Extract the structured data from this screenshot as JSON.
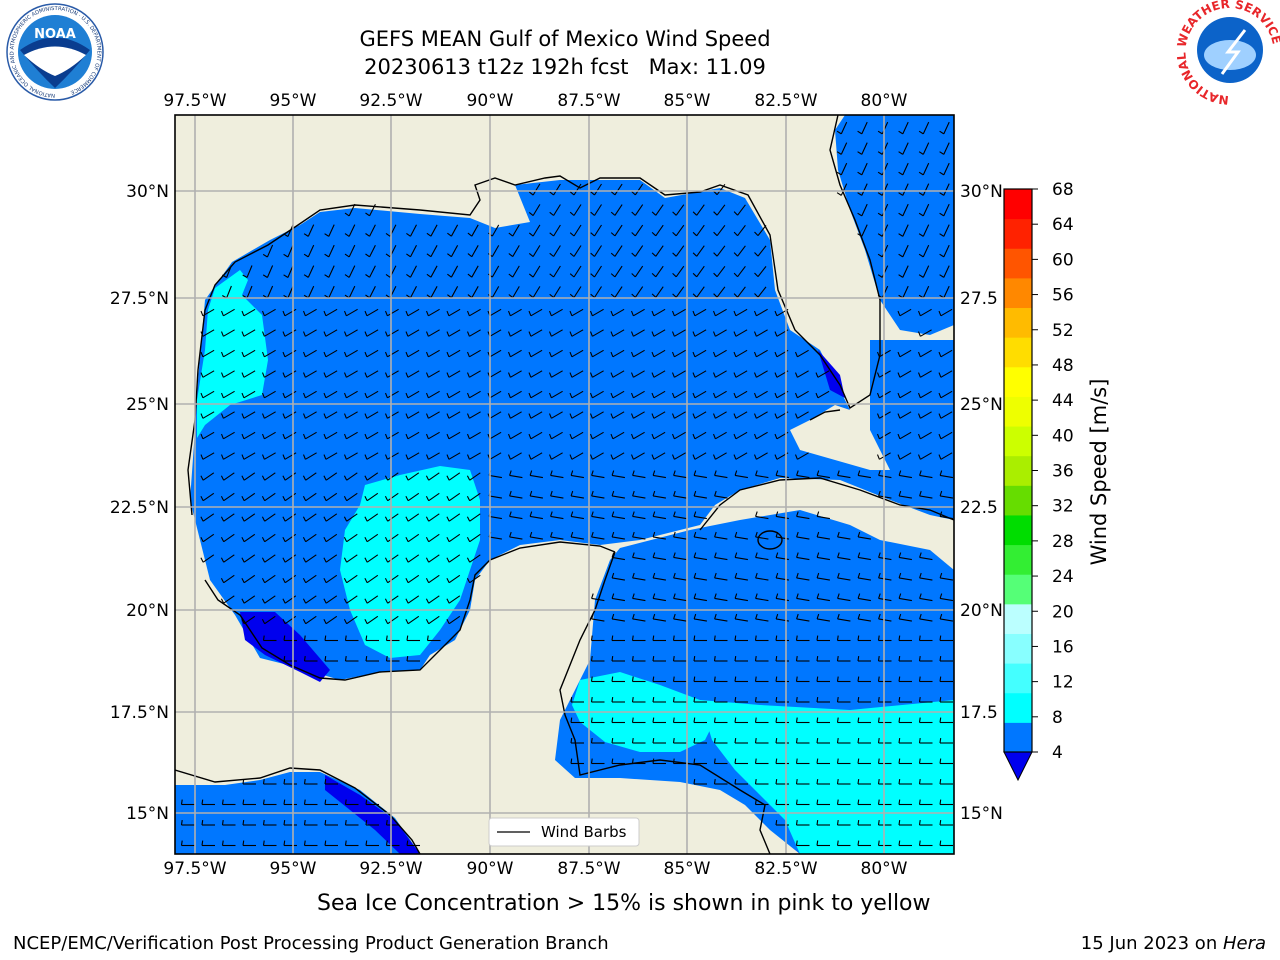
{
  "title_line1": "GEFS MEAN Gulf of Mexico Wind Speed",
  "title_line2": "20230613 t12z 192h fcst   Max: 11.09",
  "subtitle": "Sea Ice Concentration > 15% is shown in pink to yellow",
  "footer_left": "NCEP/EMC/Verification Post Processing Product Generation Branch",
  "footer_right_date": "15 Jun 2023 on ",
  "footer_right_machine": "Hera",
  "legend_label": "Wind Barbs",
  "colorbar": {
    "label": "Wind Speed [m/s]",
    "ticks": [
      "4",
      "8",
      "12",
      "16",
      "20",
      "24",
      "28",
      "32",
      "36",
      "40",
      "44",
      "48",
      "52",
      "56",
      "60",
      "64",
      "68"
    ],
    "colors": [
      "#0077ff",
      "#00ffff",
      "#44ffff",
      "#88ffff",
      "#bbffff",
      "#55ff77",
      "#33ee33",
      "#00dd00",
      "#66dd00",
      "#aaee00",
      "#ccff00",
      "#eeff00",
      "#ffff00",
      "#ffdd00",
      "#ffbb00",
      "#ff8800",
      "#ff5500",
      "#ff2200",
      "#ff0000"
    ],
    "under_color": "#0000ee"
  },
  "axes": {
    "lon_labels": [
      "97.5°W",
      "95°W",
      "92.5°W",
      "90°W",
      "87.5°W",
      "85°W",
      "82.5°W",
      "80°W"
    ],
    "lat_labels": [
      "30°N",
      "27.5°N",
      "25°N",
      "22.5°N",
      "20°N",
      "17.5°N",
      "15°N"
    ],
    "lat_labels_right": [
      "30°N",
      "27.5",
      "25°N",
      "22.5",
      "20°N",
      "17.5",
      "15°N"
    ]
  },
  "logos": {
    "noaa_text": "NOAA",
    "noaa_ring": "NATIONAL OCEANIC AND ATMOSPHERIC ADMINISTRATION · U.S. DEPARTMENT OF COMMERCE",
    "nws_ring": "NATIONAL WEATHER SERVICE"
  },
  "colors": {
    "land": "#efeedd",
    "ocean_base": "#0077ff",
    "ocean_light": "#00ffff",
    "ocean_low": "#0000ee",
    "grid": "#b0b0b0"
  }
}
